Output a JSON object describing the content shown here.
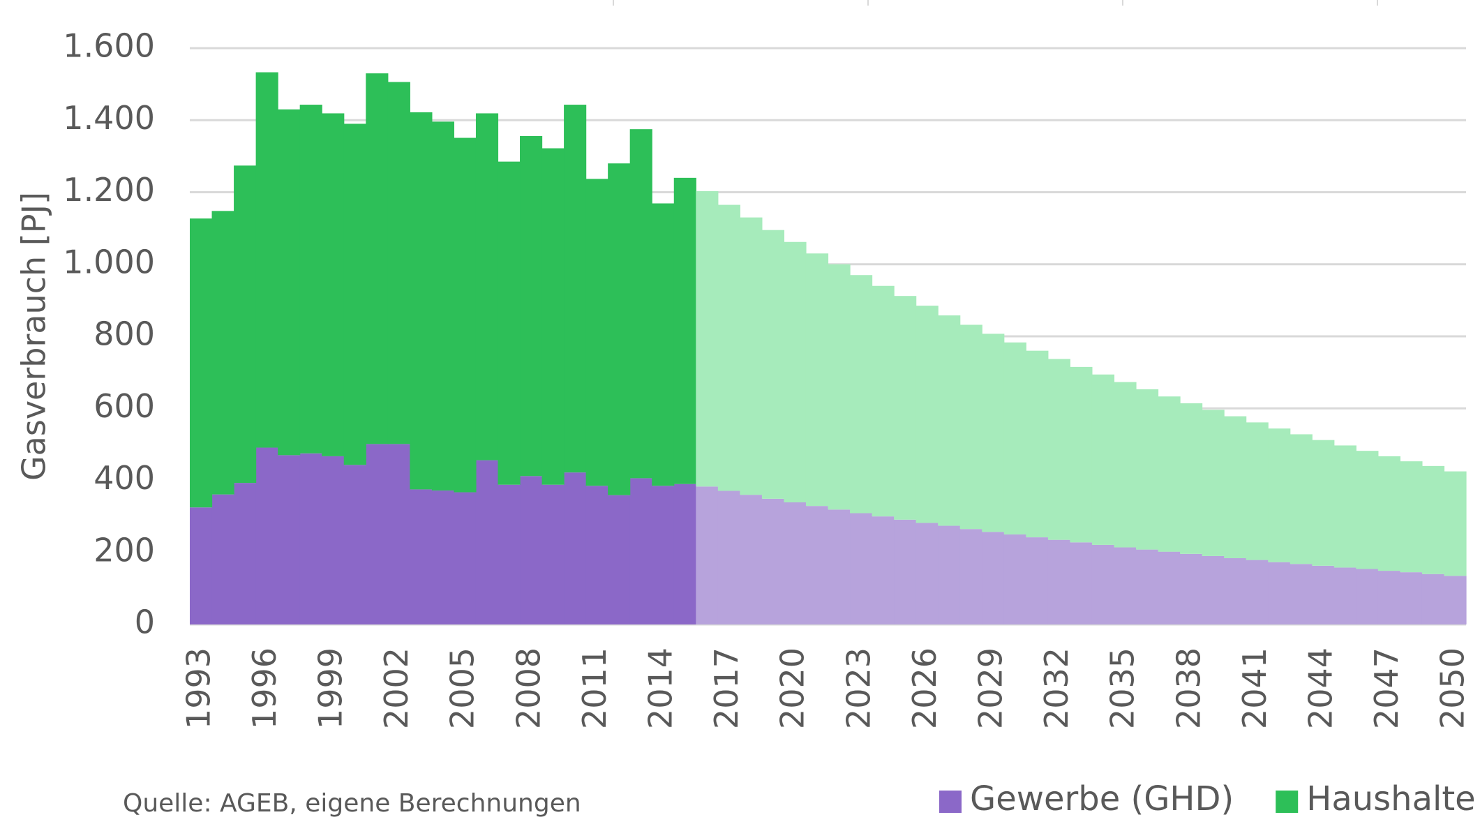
{
  "chart_data": {
    "type": "stacked-step-area",
    "y_label": "Gasverbrauch [PJ]",
    "source": "Quelle: AGEB, eigene Berechnungen",
    "x": [
      1993,
      1994,
      1995,
      1996,
      1997,
      1998,
      1999,
      2000,
      2001,
      2002,
      2003,
      2004,
      2005,
      2006,
      2007,
      2008,
      2009,
      2010,
      2011,
      2012,
      2013,
      2014,
      2015,
      2016,
      2017,
      2018,
      2019,
      2020,
      2021,
      2022,
      2023,
      2024,
      2025,
      2026,
      2027,
      2028,
      2029,
      2030,
      2031,
      2032,
      2033,
      2034,
      2035,
      2036,
      2037,
      2038,
      2039,
      2040,
      2041,
      2042,
      2043,
      2044,
      2045,
      2046,
      2047,
      2048,
      2049,
      2050
    ],
    "xlim": [
      1992.5,
      2050.5
    ],
    "xticks": [
      1993,
      1996,
      1999,
      2002,
      2005,
      2008,
      2011,
      2014,
      2017,
      2020,
      2023,
      2026,
      2029,
      2032,
      2035,
      2038,
      2041,
      2044,
      2047,
      2050
    ],
    "ylim": [
      0,
      1600
    ],
    "yticks": [
      0,
      200,
      400,
      600,
      800,
      {
        "value": 1000,
        "label": "1.000"
      },
      {
        "value": 1200,
        "label": "1.200"
      },
      {
        "value": 1400,
        "label": "1.400"
      },
      {
        "value": 1600,
        "label": "1.600"
      }
    ],
    "grid": true,
    "projection_from": 2016,
    "legend": "bottom-right",
    "series": [
      {
        "name": "Gewerbe (GHD)",
        "color": "#8b68c8",
        "projection_color": "#b7a3dc",
        "values": [
          325,
          361,
          393,
          491,
          470,
          475,
          467,
          443,
          501,
          501,
          375,
          372,
          367,
          456,
          388,
          412,
          388,
          422,
          385,
          359,
          406,
          385,
          390,
          383,
          371,
          360,
          349,
          339,
          329,
          319,
          309,
          300,
          291,
          282,
          274,
          265,
          257,
          250,
          242,
          235,
          228,
          221,
          214,
          208,
          202,
          196,
          190,
          184,
          179,
          173,
          168,
          163,
          158,
          154,
          149,
          145,
          140,
          135
        ]
      },
      {
        "name": "Haushalte",
        "color": "#2dbf58",
        "projection_color": "#a6ebbb",
        "values": [
          802,
          787,
          881,
          1042,
          960,
          968,
          952,
          947,
          1029,
          1005,
          1047,
          1024,
          984,
          963,
          897,
          944,
          934,
          1021,
          852,
          921,
          969,
          784,
          850,
          820,
          794,
          770,
          746,
          723,
          701,
          681,
          661,
          640,
          621,
          603,
          584,
          567,
          550,
          533,
          518,
          502,
          487,
          473,
          459,
          445,
          431,
          418,
          406,
          394,
          382,
          371,
          360,
          349,
          339,
          328,
          318,
          308,
          300,
          290
        ]
      }
    ]
  }
}
